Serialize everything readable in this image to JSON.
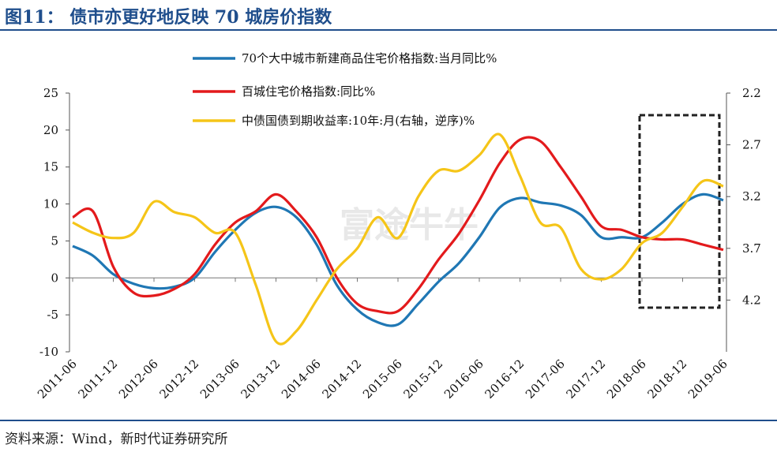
{
  "title": "图11：  债市亦更好地反映 70 城房价指数",
  "source": "资料来源：Wind，新时代证券研究所",
  "watermark": "富途牛牛",
  "chart_data": {
    "type": "line",
    "title": "",
    "xlabel": "",
    "ylabel": "",
    "left_axis": {
      "ticks": [
        25,
        20,
        15,
        10,
        5,
        0,
        -5,
        -10
      ],
      "range": [
        -10,
        25
      ]
    },
    "right_axis": {
      "ticks": [
        "2.2",
        "2.7",
        "3.2",
        "3.7",
        "4.2"
      ],
      "range": [
        2.2,
        4.7
      ],
      "reversed": true
    },
    "x_ticks": [
      "2011-06",
      "2011-12",
      "2012-06",
      "2012-12",
      "2013-06",
      "2013-12",
      "2014-06",
      "2014-12",
      "2015-06",
      "2015-12",
      "2016-06",
      "2016-12",
      "2017-06",
      "2017-12",
      "2018-06",
      "2018-12",
      "2019-06"
    ],
    "grid": false,
    "legend_position": "top-center",
    "series": [
      {
        "name": "70个大中城市新建商品住宅价格指数:当月同比%",
        "color": "#1f77b4",
        "axis": "left",
        "x": [
          "2011-06",
          "2011-09",
          "2011-12",
          "2012-03",
          "2012-06",
          "2012-09",
          "2012-12",
          "2013-03",
          "2013-06",
          "2013-09",
          "2013-12",
          "2014-03",
          "2014-06",
          "2014-09",
          "2014-12",
          "2015-03",
          "2015-06",
          "2015-09",
          "2015-12",
          "2016-03",
          "2016-06",
          "2016-09",
          "2016-12",
          "2017-03",
          "2017-06",
          "2017-09",
          "2017-12",
          "2018-03",
          "2018-06",
          "2018-09",
          "2018-12",
          "2019-03",
          "2019-06"
        ],
        "values": [
          4.3,
          3.0,
          0.5,
          -0.8,
          -1.4,
          -1.2,
          0,
          3.5,
          6.5,
          8.8,
          9.6,
          8.2,
          4.5,
          -1.0,
          -4.3,
          -6.0,
          -6.3,
          -3.5,
          -0.5,
          2.0,
          5.5,
          9.5,
          10.8,
          10.2,
          9.8,
          8.5,
          5.5,
          5.5,
          5.5,
          7.5,
          10.0,
          11.3,
          10.5
        ]
      },
      {
        "name": "百城住宅价格指数:同比%",
        "color": "#e31a1c",
        "axis": "left",
        "x": [
          "2011-06",
          "2011-09",
          "2011-12",
          "2012-03",
          "2012-06",
          "2012-09",
          "2012-12",
          "2013-03",
          "2013-06",
          "2013-09",
          "2013-12",
          "2014-03",
          "2014-06",
          "2014-09",
          "2014-12",
          "2015-03",
          "2015-06",
          "2015-09",
          "2015-12",
          "2016-03",
          "2016-06",
          "2016-09",
          "2016-12",
          "2017-03",
          "2017-06",
          "2017-09",
          "2017-12",
          "2018-03",
          "2018-06",
          "2018-09",
          "2018-12",
          "2019-03",
          "2019-06"
        ],
        "values": [
          8.2,
          9.0,
          1.5,
          -2.0,
          -2.4,
          -1.5,
          0.5,
          4.5,
          7.5,
          9.0,
          11.3,
          9.0,
          5.5,
          0,
          -3.5,
          -4.5,
          -4.5,
          -1.5,
          2.5,
          6.0,
          10.5,
          15.5,
          18.7,
          18.5,
          15.0,
          11.0,
          7.0,
          6.5,
          5.5,
          5.2,
          5.2,
          4.5,
          3.8
        ]
      },
      {
        "name": "中债国债到期收益率:10年:月(右轴，逆序)%",
        "color": "#f5c518",
        "axis": "right",
        "x": [
          "2011-06",
          "2011-09",
          "2011-12",
          "2012-03",
          "2012-06",
          "2012-09",
          "2012-12",
          "2013-03",
          "2013-06",
          "2013-09",
          "2013-12",
          "2014-03",
          "2014-06",
          "2014-09",
          "2014-12",
          "2015-03",
          "2015-06",
          "2015-09",
          "2015-12",
          "2016-03",
          "2016-06",
          "2016-09",
          "2016-12",
          "2017-03",
          "2017-06",
          "2017-09",
          "2017-12",
          "2018-03",
          "2018-06",
          "2018-09",
          "2018-12",
          "2019-03",
          "2019-06"
        ],
        "values": [
          3.45,
          3.55,
          3.6,
          3.55,
          3.25,
          3.35,
          3.4,
          3.55,
          3.55,
          4.05,
          4.6,
          4.5,
          4.2,
          3.9,
          3.7,
          3.4,
          3.6,
          3.2,
          2.95,
          2.95,
          2.8,
          2.6,
          3.0,
          3.45,
          3.5,
          3.9,
          4.0,
          3.9,
          3.65,
          3.55,
          3.3,
          3.05,
          3.1
        ]
      }
    ]
  }
}
